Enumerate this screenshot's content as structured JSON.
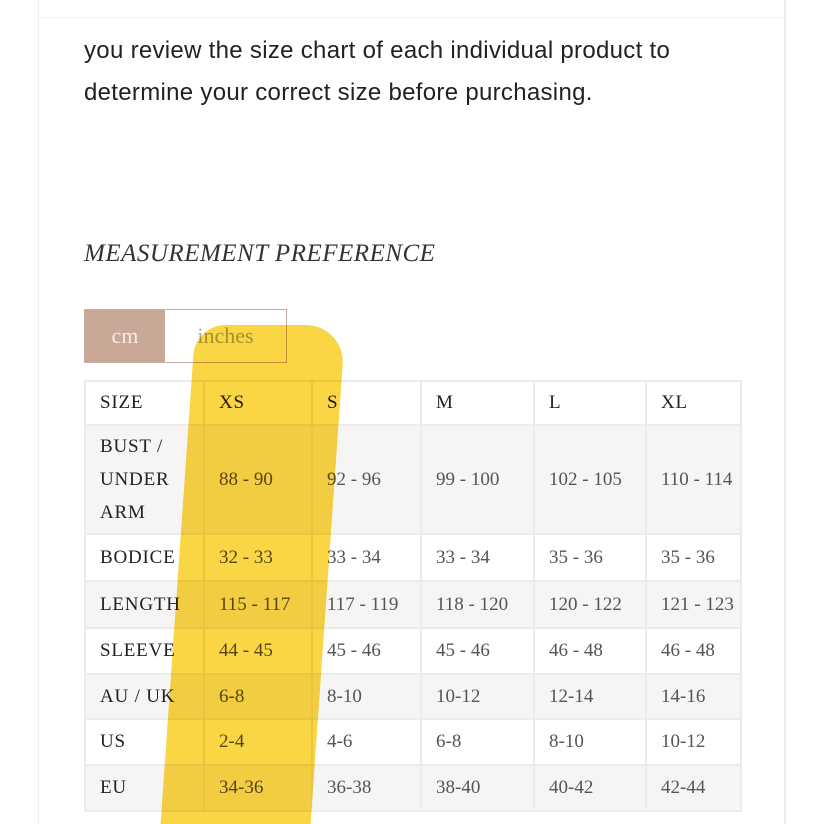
{
  "intro_text": "you review the size chart of each individual product to determine your correct size before purchasing.",
  "measurement_title": "MEASUREMENT PREFERENCE",
  "units": {
    "cm": "cm",
    "inches": "inches",
    "selected": "cm"
  },
  "accent_color": "#c9a898",
  "highlight_color": "#f9cc1a",
  "table": {
    "headers": [
      "SIZE",
      "XS",
      "S",
      "M",
      "L",
      "XL"
    ],
    "rows": [
      {
        "label": "BUST / UNDER ARM",
        "values": [
          "88 - 90",
          "92 - 96",
          "99 - 100",
          "102 - 105",
          "110 - 114"
        ]
      },
      {
        "label": "BODICE",
        "values": [
          "32 - 33",
          "33 - 34",
          "33 - 34",
          "35 - 36",
          "35 - 36"
        ]
      },
      {
        "label": "LENGTH",
        "values": [
          "115 - 117",
          "117 - 119",
          "118 - 120",
          "120 - 122",
          "121 - 123"
        ]
      },
      {
        "label": "SLEEVE",
        "values": [
          "44 - 45",
          "45 - 46",
          "45 - 46",
          "46 - 48",
          "46 - 48"
        ]
      },
      {
        "label": "AU / UK",
        "values": [
          "6-8",
          "8-10",
          "10-12",
          "12-14",
          "14-16"
        ]
      },
      {
        "label": "US",
        "values": [
          "2-4",
          "4-6",
          "6-8",
          "8-10",
          "10-12"
        ]
      },
      {
        "label": "EU",
        "values": [
          "34-36",
          "36-38",
          "38-40",
          "40-42",
          "42-44"
        ]
      }
    ]
  }
}
